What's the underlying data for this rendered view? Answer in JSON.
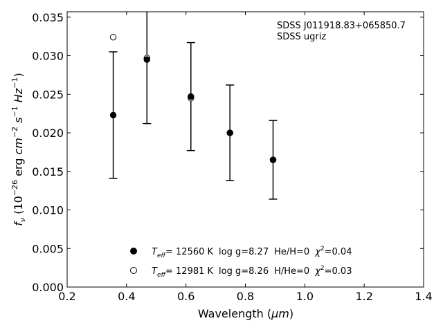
{
  "chart_data": {
    "type": "scatter",
    "xlabel": "Wavelength",
    "xlabel_unit": "μm",
    "ylabel": "f",
    "ylabel_sub": "ν",
    "ylabel_scale": "10",
    "ylabel_scale_exp": "−26",
    "ylabel_unit_erg": "erg",
    "ylabel_unit_cm": "cm",
    "ylabel_unit_cm_exp": "−2",
    "ylabel_unit_s": "s",
    "ylabel_unit_s_exp": "−1",
    "ylabel_unit_hz": "Hz",
    "ylabel_unit_hz_exp": "−1",
    "xlim": [
      0.2,
      1.4
    ],
    "ylim": [
      0.0,
      0.0357
    ],
    "xticks": [
      "0.2",
      "0.4",
      "0.6",
      "0.8",
      "1.0",
      "1.2",
      "1.4"
    ],
    "yticks": [
      "0.000",
      "0.005",
      "0.010",
      "0.015",
      "0.020",
      "0.025",
      "0.030",
      "0.035"
    ],
    "grid": false,
    "annotation": [
      "SDSS J011918.83+065850.7",
      "SDSS ugriz"
    ],
    "observed": {
      "x": [
        0.3551,
        0.4686,
        0.6166,
        0.748,
        0.8932
      ],
      "y": [
        0.0223,
        0.0295,
        0.0247,
        0.02,
        0.0165
      ],
      "yerr": [
        0.0082,
        0.0083,
        0.007,
        0.0062,
        0.0051
      ],
      "yerr_top_clipped": [
        false,
        true,
        false,
        false,
        false
      ]
    },
    "series": [
      {
        "marker": "filled",
        "label_main": "T",
        "label_sub": "eff",
        "label_teff": "= 12560 K",
        "label_logg": "log g=8.27",
        "label_comp": "He/H=0",
        "label_chi": "χ",
        "label_chi_exp": "2",
        "label_chi_val": "=0.04",
        "x": [
          0.3551,
          0.4686,
          0.6166,
          0.748,
          0.8932
        ],
        "y": [
          0.0223,
          0.0295,
          0.0247,
          0.02,
          0.0165
        ]
      },
      {
        "marker": "open",
        "label_main": "T",
        "label_sub": "eff",
        "label_teff": "= 12981 K",
        "label_logg": "log g=8.26",
        "label_comp": "H/He=0",
        "label_chi": "χ",
        "label_chi_exp": "2",
        "label_chi_val": "=0.03",
        "x": [
          0.3551,
          0.4686,
          0.6166,
          0.748,
          0.8932
        ],
        "y": [
          0.0324,
          0.0297,
          0.0245,
          0.02,
          0.0165
        ]
      }
    ]
  }
}
